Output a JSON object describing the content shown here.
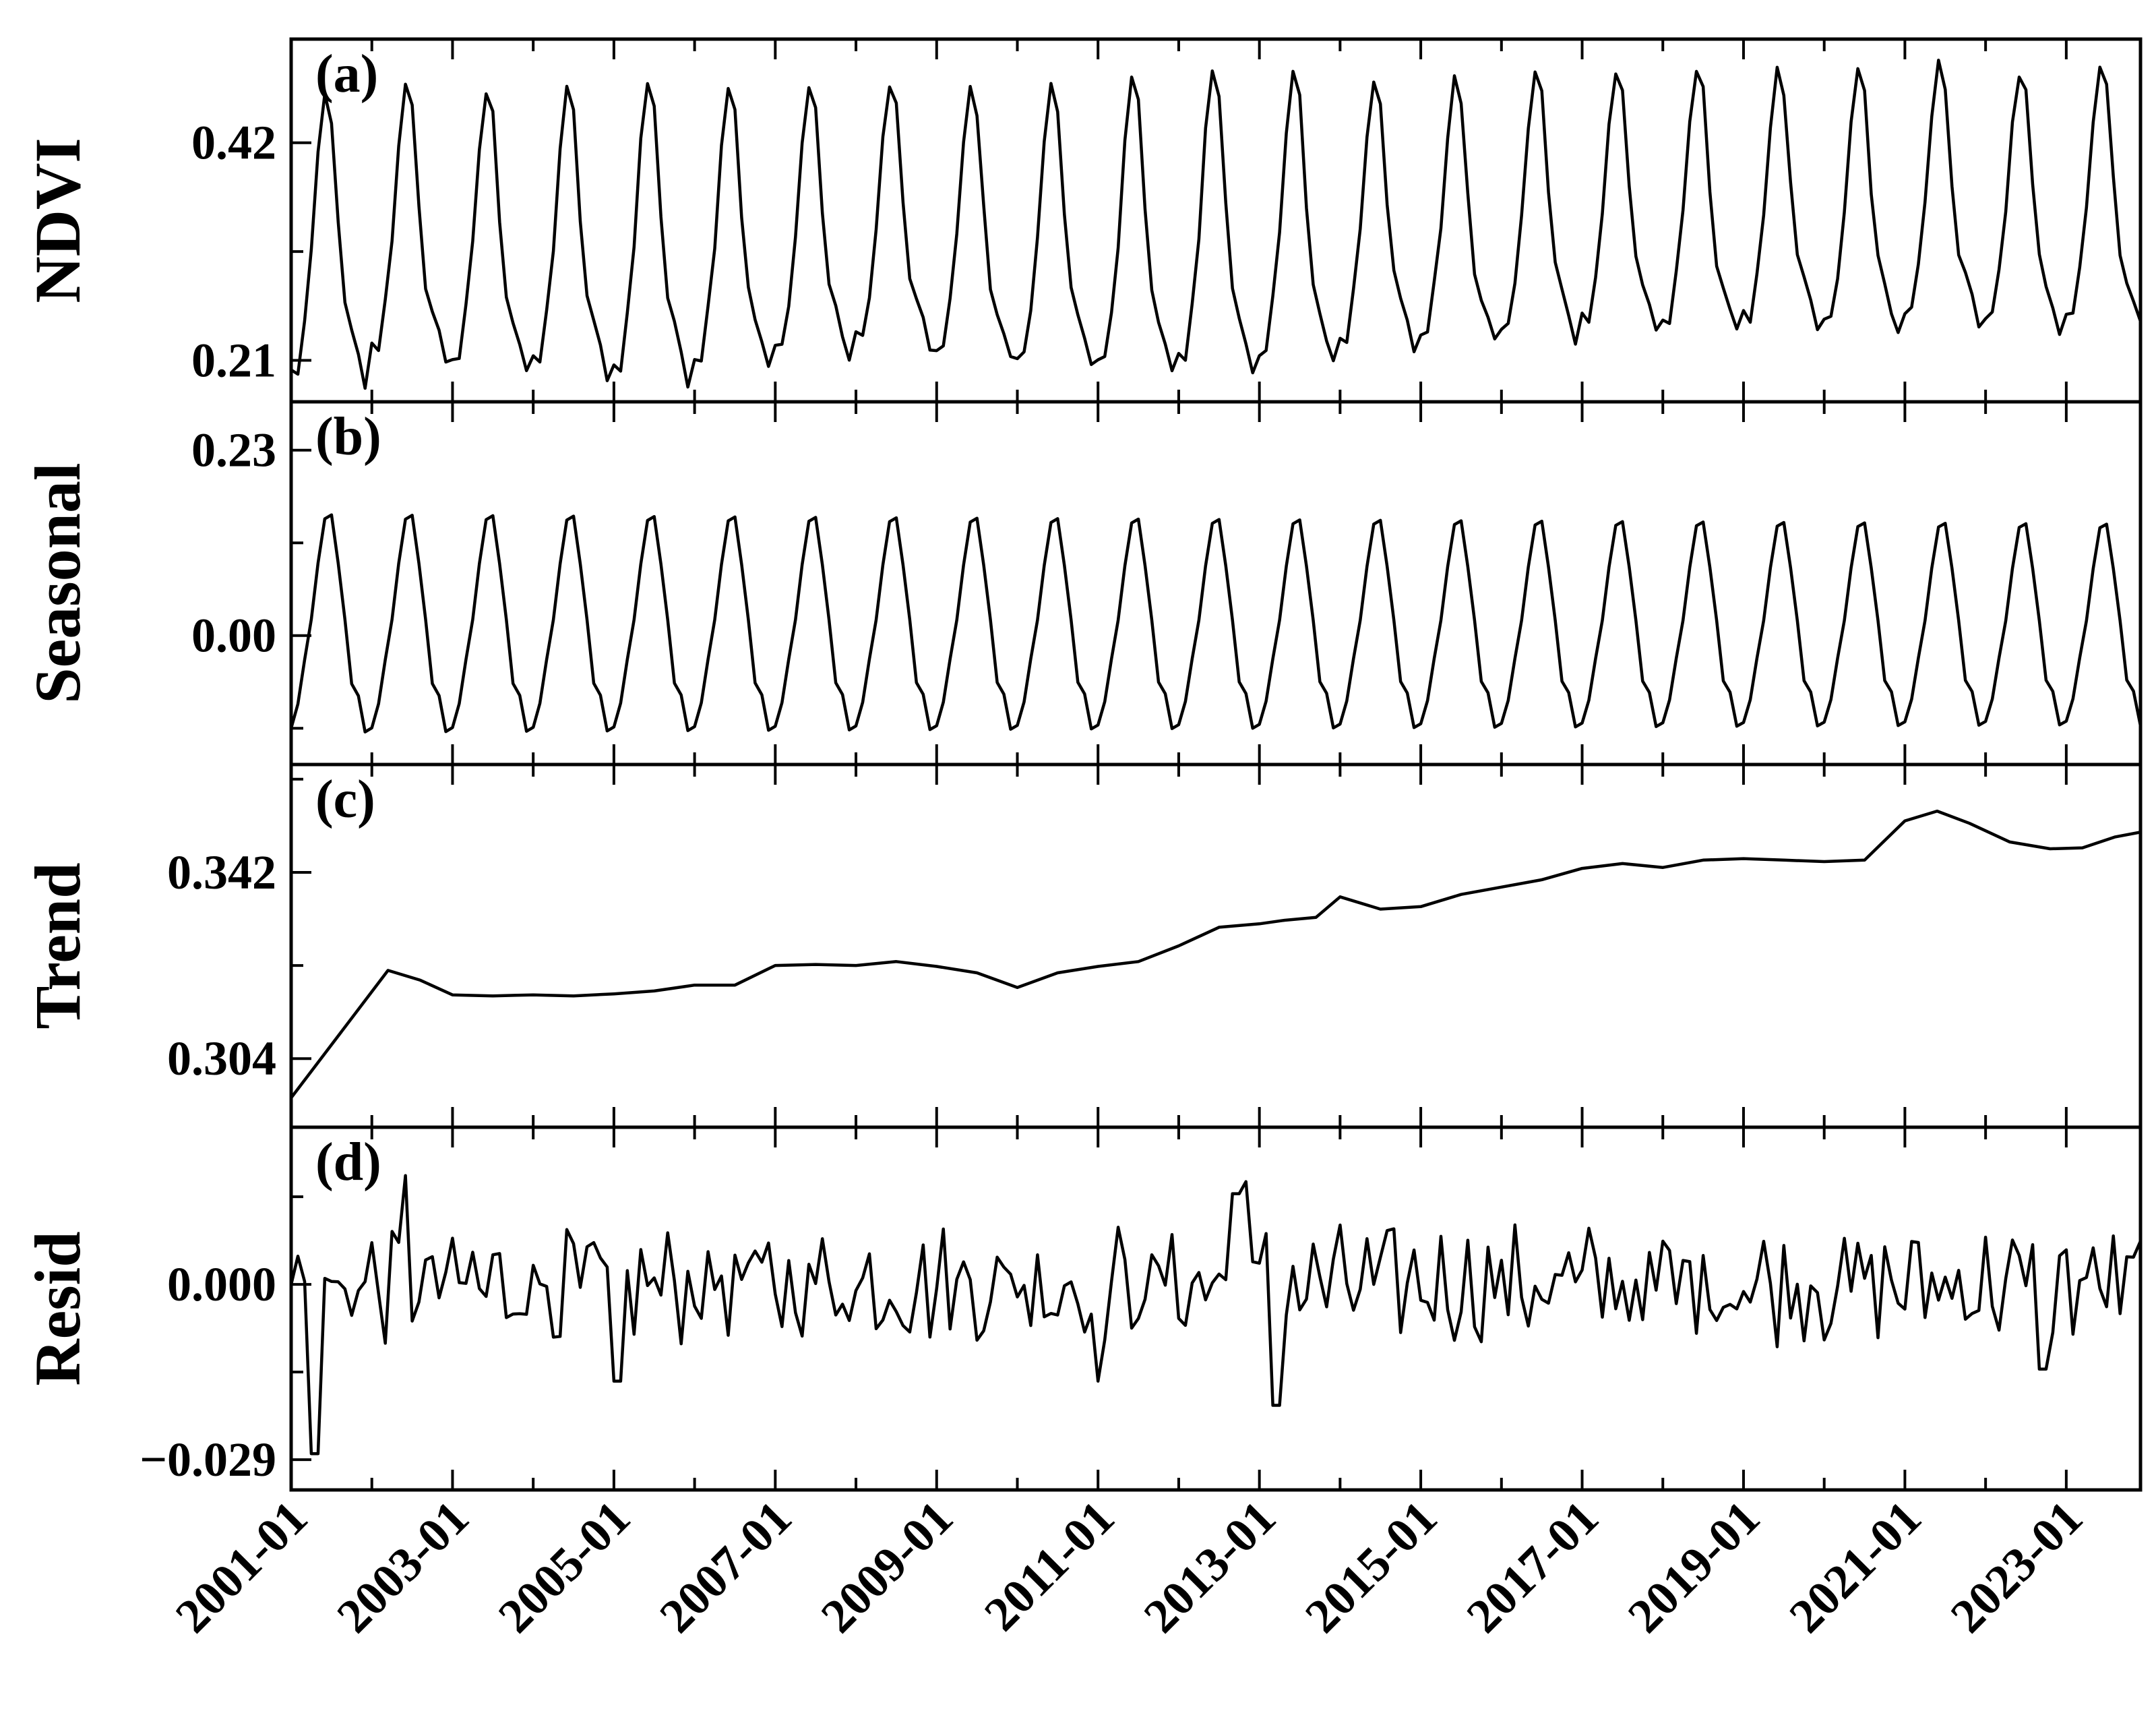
{
  "chart_data": {
    "type": "line",
    "x_axis": {
      "start": "2001-01",
      "end": "2023-12",
      "tick_labels": [
        "2001-01",
        "2003-01",
        "2005-01",
        "2007-01",
        "2009-01",
        "2011-01",
        "2013-01",
        "2015-01",
        "2017-01",
        "2019-01",
        "2021-01",
        "2023-01"
      ]
    },
    "panels": [
      {
        "label": "(a)",
        "ylabel": "NDVI",
        "yticks": [
          "0.21",
          "0.42"
        ],
        "ylim": [
          0.17,
          0.52
        ],
        "series": {
          "years": [
            2001,
            2002,
            2003,
            2004,
            2005,
            2006,
            2007,
            2008,
            2009,
            2010,
            2011,
            2012,
            2013,
            2014,
            2015,
            2016,
            2017,
            2018,
            2019,
            2020,
            2021,
            2022,
            2023
          ],
          "peaks": [
            0.465,
            0.473,
            0.468,
            0.47,
            0.48,
            0.475,
            0.473,
            0.475,
            0.472,
            0.478,
            0.483,
            0.49,
            0.485,
            0.483,
            0.48,
            0.488,
            0.488,
            0.49,
            0.488,
            0.49,
            0.495,
            0.487,
            0.495
          ],
          "minima": [
            0.185,
            0.21,
            0.2,
            0.195,
            0.19,
            0.2,
            0.21,
            0.22,
            0.21,
            0.2,
            0.195,
            0.2,
            0.205,
            0.22,
            0.225,
            0.23,
            0.24,
            0.235,
            0.24,
            0.235,
            0.245,
            0.24,
            0.245
          ],
          "end_value": 0.26
        }
      },
      {
        "label": "(b)",
        "ylabel": "Seasonal",
        "yticks": [
          "0.00",
          "0.23"
        ],
        "ylim": [
          -0.16,
          0.29
        ],
        "series": {
          "monthly_cycle": [
            -0.115,
            -0.085,
            -0.03,
            0.02,
            0.09,
            0.145,
            0.15,
            0.09,
            0.02,
            -0.06,
            -0.075,
            -0.12
          ],
          "amplitude_start": 1.0,
          "amplitude_end": 0.92
        }
      },
      {
        "label": "(c)",
        "ylabel": "Trend",
        "yticks": [
          "0.304",
          "0.342"
        ],
        "ylim": [
          0.29,
          0.364
        ],
        "series": {
          "x": [
            2001.0,
            2002.2,
            2002.6,
            2003.0,
            2003.5,
            2004.0,
            2004.5,
            2005.0,
            2005.5,
            2006.0,
            2006.5,
            2007.0,
            2007.5,
            2008.0,
            2008.5,
            2009.0,
            2009.5,
            2010.0,
            2010.5,
            2011.0,
            2011.5,
            2012.0,
            2012.5,
            2013.0,
            2013.3,
            2013.7,
            2014.0,
            2014.5,
            2015.0,
            2015.5,
            2016.0,
            2016.5,
            2017.0,
            2017.5,
            2018.0,
            2018.5,
            2019.0,
            2019.5,
            2020.0,
            2020.5,
            2021.0,
            2021.4,
            2021.8,
            2022.3,
            2022.8,
            2023.2,
            2023.6,
            2023.92
          ],
          "y": [
            0.296,
            0.322,
            0.32,
            0.317,
            0.3168,
            0.317,
            0.3168,
            0.3172,
            0.3178,
            0.319,
            0.319,
            0.323,
            0.3232,
            0.323,
            0.3238,
            0.3228,
            0.3215,
            0.3185,
            0.3215,
            0.3228,
            0.3238,
            0.327,
            0.3308,
            0.3315,
            0.3322,
            0.3328,
            0.337,
            0.3345,
            0.335,
            0.3375,
            0.339,
            0.3405,
            0.3428,
            0.3438,
            0.343,
            0.3445,
            0.3448,
            0.3445,
            0.3442,
            0.3445,
            0.3525,
            0.3545,
            0.352,
            0.3482,
            0.3468,
            0.347,
            0.3492,
            0.3502
          ]
        }
      },
      {
        "label": "(d)",
        "ylabel": "Resid",
        "yticks": [
          "−0.029",
          "0.000"
        ],
        "ylim": [
          -0.034,
          0.026
        ],
        "series": {
          "spikes": [
            {
              "t": 2001.3,
              "v": -0.028
            },
            {
              "t": 2002.4,
              "v": 0.018
            },
            {
              "t": 2005.05,
              "v": -0.016
            },
            {
              "t": 2011.0,
              "v": -0.016
            },
            {
              "t": 2012.7,
              "v": 0.015
            },
            {
              "t": 2012.85,
              "v": 0.017
            },
            {
              "t": 2013.2,
              "v": -0.02
            },
            {
              "t": 2022.7,
              "v": -0.014
            }
          ]
        }
      }
    ]
  }
}
